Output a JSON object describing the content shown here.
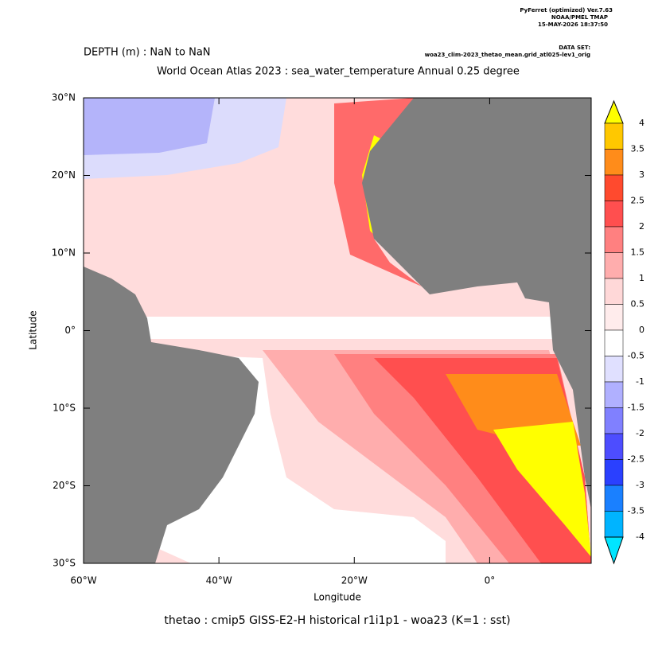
{
  "header": {
    "software": "PyFerret (optimized) Ver.7.63",
    "org": "NOAA/PMEL TMAP",
    "timestamp": "15-MAY-2026 18:37:50",
    "dataset_label": "DATA SET:",
    "dataset": "woa23_clim-2023_thetao_mean.grid_atl025-lev1_orig",
    "depth": "DEPTH (m) : NaN to NaN",
    "title": "World Ocean Atlas 2023 : sea_water_temperature Annual  0.25 degree"
  },
  "axes": {
    "xlabel": "Longitude",
    "ylabel": "Latitude",
    "xlim": [
      -60,
      15
    ],
    "ylim": [
      -30,
      30
    ],
    "xticks": [
      {
        "value": -60,
        "label": "60°W"
      },
      {
        "value": -40,
        "label": "40°W"
      },
      {
        "value": -20,
        "label": "20°W"
      },
      {
        "value": 0,
        "label": "0°"
      }
    ],
    "yticks": [
      {
        "value": 30,
        "label": "30°N"
      },
      {
        "value": 20,
        "label": "20°N"
      },
      {
        "value": 10,
        "label": "10°N"
      },
      {
        "value": 0,
        "label": "0°"
      },
      {
        "value": -10,
        "label": "10°S"
      },
      {
        "value": -20,
        "label": "20°S"
      },
      {
        "value": -30,
        "label": "30°S"
      }
    ]
  },
  "colorbar": {
    "levels": [
      4.0,
      3.5,
      3.0,
      2.5,
      2.0,
      1.5,
      1.0,
      0.5,
      0.0,
      -0.5,
      -1.0,
      -1.5,
      -2.0,
      -2.5,
      -3.0,
      -3.5,
      -4.0
    ],
    "colors": [
      "#ffff00",
      "#ffc800",
      "#ff8c1a",
      "#ff4a2e",
      "#ff4f4f",
      "#ff8080",
      "#ffadad",
      "#ffd8d8",
      "#ffecec",
      "#ffffff",
      "#e0e0ff",
      "#b0b0ff",
      "#8080ff",
      "#4d4dff",
      "#2a40ff",
      "#1a80ff",
      "#00b4ff",
      "#00e5ff"
    ]
  },
  "footer": "thetao : cmip5 GISS-E2-H historical r1i1p1 - woa23  (K=1 : sst)"
}
